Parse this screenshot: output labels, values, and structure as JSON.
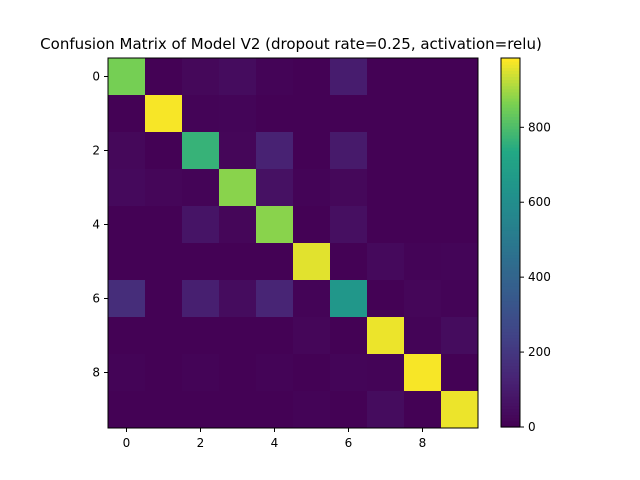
{
  "chart_data": {
    "type": "heatmap",
    "title": "Confusion Matrix of Model V2 (dropout rate=0.25, activation=relu)",
    "xlabel": "",
    "ylabel": "",
    "x_tick_labels": [
      "0",
      "2",
      "4",
      "6",
      "8"
    ],
    "x_tick_values": [
      0,
      2,
      4,
      6,
      8
    ],
    "y_tick_labels": [
      "0",
      "2",
      "4",
      "6",
      "8"
    ],
    "y_tick_values": [
      0,
      2,
      4,
      6,
      8
    ],
    "rows": [
      0,
      1,
      2,
      3,
      4,
      5,
      6,
      7,
      8,
      9
    ],
    "cols": [
      0,
      1,
      2,
      3,
      4,
      5,
      6,
      7,
      8,
      9
    ],
    "matrix": [
      [
        860,
        5,
        25,
        40,
        10,
        5,
        100,
        5,
        5,
        5
      ],
      [
        2,
        980,
        10,
        15,
        5,
        5,
        5,
        2,
        2,
        2
      ],
      [
        25,
        5,
        770,
        20,
        120,
        5,
        90,
        5,
        5,
        5
      ],
      [
        30,
        20,
        10,
        880,
        60,
        10,
        25,
        5,
        5,
        5
      ],
      [
        5,
        5,
        70,
        20,
        880,
        5,
        50,
        5,
        5,
        5
      ],
      [
        5,
        5,
        5,
        5,
        5,
        960,
        5,
        30,
        10,
        15
      ],
      [
        160,
        5,
        110,
        40,
        130,
        10,
        650,
        5,
        20,
        10
      ],
      [
        5,
        5,
        5,
        5,
        5,
        20,
        5,
        970,
        10,
        40
      ],
      [
        10,
        5,
        10,
        5,
        10,
        5,
        15,
        10,
        980,
        5
      ],
      [
        5,
        2,
        2,
        2,
        5,
        10,
        5,
        40,
        5,
        970
      ]
    ],
    "vmin": 0,
    "vmax": 985,
    "colormap": "viridis",
    "colorbar": {
      "tick_values": [
        0,
        200,
        400,
        600,
        800
      ],
      "tick_labels": [
        "0",
        "200",
        "400",
        "600",
        "800"
      ]
    },
    "grid": false,
    "legend": "none"
  }
}
